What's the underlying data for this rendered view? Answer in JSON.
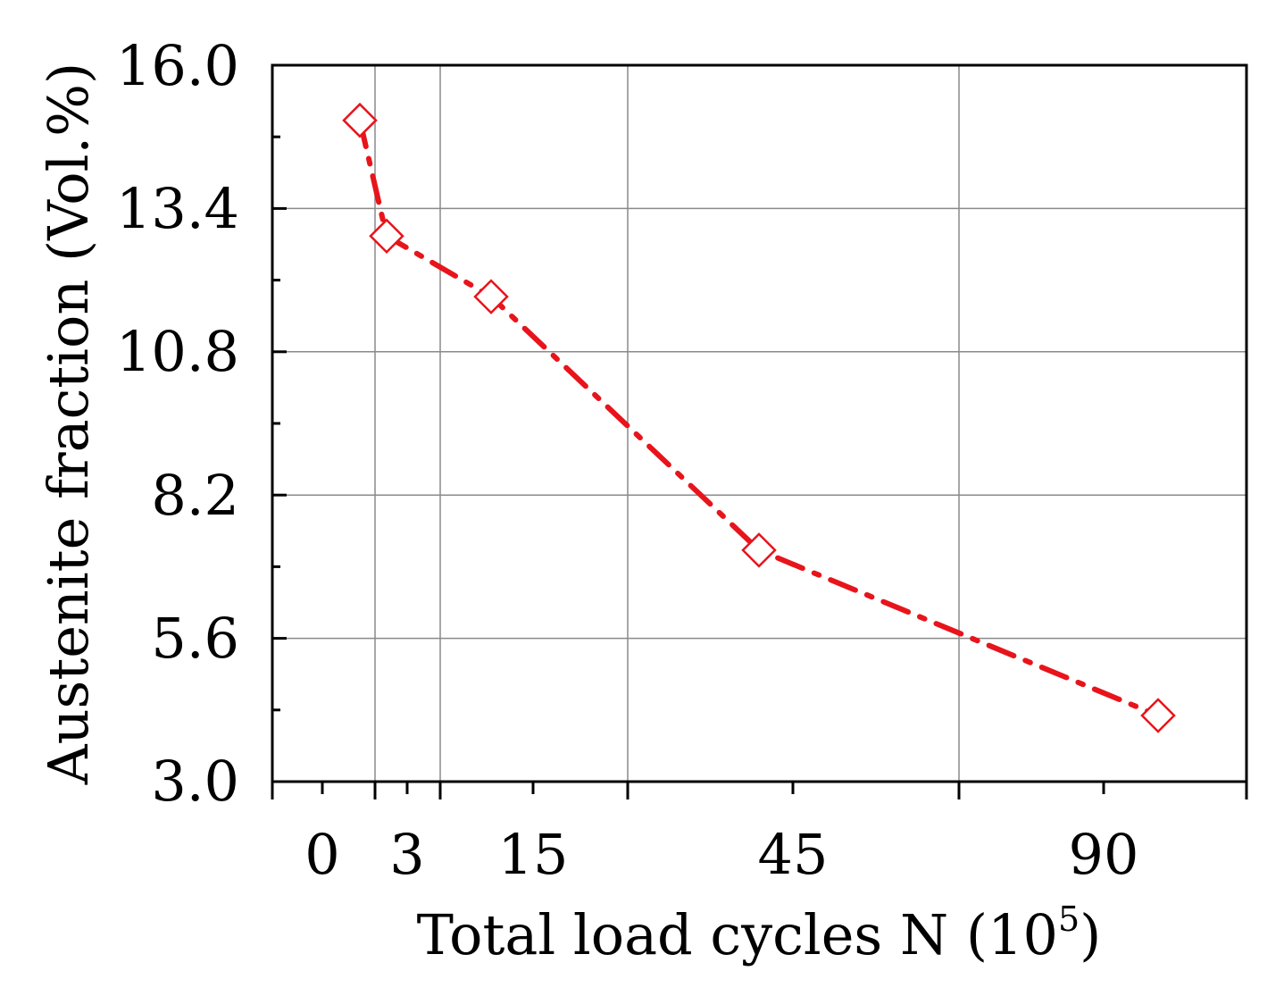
{
  "chart_data": {
    "type": "line",
    "title": "",
    "xlabel": "Total load cycles N (10",
    "xlabel_superscript": "5",
    "xlabel_close": ")",
    "ylabel": "Austenite fraction (Vol.%)",
    "ylim": [
      3.0,
      16.0
    ],
    "y_ticks": [
      "3.0",
      "5.6",
      "8.2",
      "10.8",
      "13.4",
      "16.0"
    ],
    "y_tick_values": [
      3.0,
      5.6,
      8.2,
      10.8,
      13.4,
      16.0
    ],
    "x_ticks": [
      "0",
      "3",
      "15",
      "45",
      "90"
    ],
    "grid": true,
    "series": [
      {
        "name": "Austenite fraction",
        "color": "#e8141b",
        "marker": "open-diamond",
        "line_style": "dash-dot",
        "points": [
          {
            "x": 1,
            "y": 15.0
          },
          {
            "x": 2,
            "y": 12.9
          },
          {
            "x": 10,
            "y": 11.8
          },
          {
            "x": 40,
            "y": 7.2
          },
          {
            "x": 100,
            "y": 4.2
          }
        ]
      }
    ]
  }
}
